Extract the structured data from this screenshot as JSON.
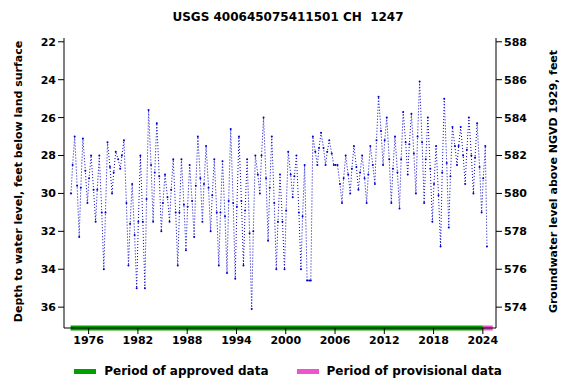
{
  "chart_data": {
    "type": "line",
    "title": "USGS 400645075411501 CH  1247",
    "ylabel": "Depth to water level, feet below land surface",
    "y2label": "Groundwater level above NGVD 1929, feet",
    "x": [
      1973.85,
      1974.05,
      1974.3,
      1974.6,
      1974.85,
      1975.05,
      1975.3,
      1975.6,
      1975.85,
      1976.05,
      1976.3,
      1976.6,
      1976.85,
      1977.05,
      1977.3,
      1977.6,
      1977.85,
      1978.05,
      1978.3,
      1978.6,
      1978.85,
      1979.05,
      1979.3,
      1979.6,
      1979.85,
      1980.05,
      1980.3,
      1980.6,
      1980.85,
      1981.05,
      1981.3,
      1981.6,
      1981.85,
      1982.05,
      1982.3,
      1982.6,
      1982.85,
      1983.05,
      1983.3,
      1983.6,
      1983.85,
      1984.05,
      1984.3,
      1984.6,
      1984.85,
      1985.05,
      1985.3,
      1985.6,
      1985.85,
      1986.05,
      1986.3,
      1986.6,
      1986.85,
      1987.05,
      1987.3,
      1987.6,
      1987.85,
      1988.05,
      1988.3,
      1988.6,
      1988.85,
      1989.05,
      1989.3,
      1989.6,
      1989.85,
      1990.05,
      1990.3,
      1990.6,
      1990.85,
      1991.05,
      1991.3,
      1991.6,
      1991.85,
      1992.05,
      1992.3,
      1992.6,
      1992.85,
      1993.05,
      1993.3,
      1993.6,
      1993.85,
      1994.05,
      1994.3,
      1994.6,
      1994.85,
      1995.05,
      1995.3,
      1995.6,
      1995.85,
      1996.05,
      1996.3,
      1996.6,
      1996.85,
      1997.05,
      1997.3,
      1997.6,
      1997.85,
      1998.05,
      1998.3,
      1998.6,
      1998.85,
      1999.05,
      1999.3,
      1999.6,
      1999.85,
      2000.05,
      2000.3,
      2000.6,
      2000.85,
      2001.05,
      2001.3,
      2001.6,
      2001.85,
      2002.05,
      2002.3,
      2002.6,
      2002.85,
      2003.05,
      2003.3,
      2003.6,
      2003.85,
      2004.05,
      2004.3,
      2004.6,
      2004.85,
      2005.05,
      2005.3,
      2005.6,
      2005.85,
      2006.05,
      2006.3,
      2006.6,
      2006.85,
      2007.05,
      2007.3,
      2007.6,
      2007.85,
      2008.05,
      2008.3,
      2008.6,
      2008.85,
      2009.05,
      2009.3,
      2009.6,
      2009.85,
      2010.05,
      2010.3,
      2010.6,
      2010.85,
      2011.05,
      2011.3,
      2011.6,
      2011.85,
      2012.05,
      2012.3,
      2012.6,
      2012.85,
      2013.05,
      2013.3,
      2013.6,
      2013.85,
      2014.05,
      2014.3,
      2014.6,
      2014.85,
      2015.05,
      2015.3,
      2015.6,
      2015.85,
      2016.05,
      2016.3,
      2016.6,
      2016.85,
      2017.05,
      2017.3,
      2017.6,
      2017.85,
      2018.05,
      2018.3,
      2018.6,
      2018.85,
      2019.05,
      2019.3,
      2019.6,
      2019.85,
      2020.05,
      2020.3,
      2020.6,
      2020.85,
      2021.05,
      2021.3,
      2021.6,
      2021.85,
      2022.05,
      2022.3,
      2022.6,
      2022.85,
      2023.05,
      2023.3,
      2023.6,
      2023.85,
      2024.05,
      2024.3,
      2024.5
    ],
    "values": [
      30.0,
      28.5,
      27.0,
      29.6,
      32.3,
      29.7,
      27.1,
      28.8,
      30.5,
      29.2,
      28.0,
      29.8,
      31.5,
      29.8,
      28.0,
      31.0,
      34.0,
      31.0,
      27.3,
      28.6,
      30.0,
      28.9,
      27.8,
      28.2,
      28.7,
      28.0,
      27.2,
      30.5,
      33.8,
      31.6,
      29.5,
      32.2,
      35.0,
      31.5,
      28.0,
      31.5,
      35.0,
      30.3,
      25.6,
      28.5,
      31.5,
      28.9,
      26.3,
      29.1,
      32.0,
      30.5,
      29.0,
      30.2,
      31.5,
      29.8,
      28.2,
      31.0,
      33.8,
      31.0,
      28.2,
      30.6,
      33.0,
      30.7,
      28.5,
      30.4,
      32.3,
      29.6,
      27.0,
      29.2,
      31.5,
      29.5,
      27.5,
      29.7,
      32.0,
      30.1,
      28.2,
      31.0,
      33.8,
      31.0,
      28.3,
      31.2,
      34.2,
      30.4,
      26.6,
      30.5,
      34.5,
      30.7,
      27.0,
      30.4,
      33.8,
      30.9,
      28.2,
      32.1,
      36.1,
      32.0,
      28.0,
      29.0,
      30.0,
      28.0,
      26.0,
      29.2,
      32.5,
      29.7,
      27.0,
      30.5,
      34.0,
      31.5,
      29.0,
      31.5,
      34.0,
      30.9,
      27.8,
      29.0,
      30.2,
      29.1,
      28.0,
      31.0,
      34.0,
      31.2,
      28.5,
      34.6,
      34.6,
      34.6,
      27.0,
      27.8,
      28.5,
      27.6,
      26.8,
      27.6,
      28.5,
      27.8,
      27.2,
      27.9,
      28.5,
      28.5,
      28.5,
      29.5,
      30.5,
      29.2,
      28.0,
      29.0,
      30.0,
      28.7,
      27.5,
      28.6,
      29.8,
      28.9,
      28.0,
      29.2,
      30.5,
      29.0,
      27.5,
      28.5,
      29.5,
      27.2,
      24.9,
      26.7,
      28.5,
      27.2,
      26.0,
      28.2,
      30.5,
      28.7,
      27.0,
      28.9,
      30.8,
      28.2,
      25.7,
      27.3,
      29.0,
      27.4,
      25.8,
      27.9,
      30.0,
      27.0,
      24.1,
      27.3,
      30.5,
      28.2,
      26.0,
      28.7,
      31.5,
      29.5,
      27.5,
      30.1,
      32.8,
      28.9,
      25.0,
      28.4,
      31.8,
      29.1,
      26.5,
      27.5,
      28.5,
      27.5,
      26.5,
      28.0,
      29.5,
      27.7,
      26.0,
      28.0,
      30.0,
      28.1,
      26.3,
      28.6,
      31.0,
      29.2,
      27.5,
      32.8
    ],
    "color": "#0000cc",
    "line_style": "dotted",
    "marker": "dot",
    "xlim": [
      1973.0,
      2025.6
    ],
    "xticks": [
      1976,
      1982,
      1988,
      1994,
      2000,
      2006,
      2012,
      2018,
      2024
    ],
    "ylim": [
      37.1,
      21.8
    ],
    "yticks": [
      22,
      24,
      26,
      28,
      30,
      32,
      34,
      36
    ],
    "y2lim": [
      572.9,
      588.2
    ],
    "y2ticks": [
      574,
      576,
      578,
      580,
      582,
      584,
      586,
      588
    ],
    "grid": false,
    "legend": "bottom",
    "periods": [
      {
        "name": "Period of approved data",
        "color": "#00a000",
        "x": [
          1973.8,
          2024.0
        ]
      },
      {
        "name": "Period of provisional data",
        "color": "#ee55cc",
        "x": [
          2024.0,
          2025.2
        ]
      }
    ]
  }
}
